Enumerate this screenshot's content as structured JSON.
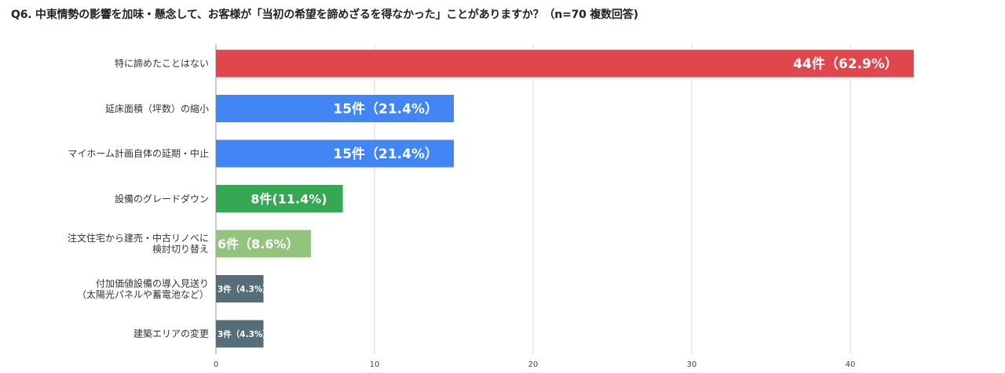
{
  "chart_data": {
    "type": "bar",
    "orientation": "horizontal",
    "title": "Q6. 中東情勢の影響を加味・懸念して、お客様が「当初の希望を諦めざるを得なかった」ことがありますか？（n=70 複数回答)",
    "categories": [
      [
        "特に諦めたことはない"
      ],
      [
        "延床面積（坪数）の縮小"
      ],
      [
        "マイホーム計画自体の延期・中止"
      ],
      [
        "設備のグレードダウン"
      ],
      [
        "注文住宅から建売・中古リノベに",
        "検討切り替え"
      ],
      [
        "付加価値設備の導入見送り",
        "（太陽光パネルや蓄電池など）"
      ],
      [
        "建築エリアの変更"
      ]
    ],
    "values": [
      44,
      15,
      15,
      8,
      6,
      3,
      3
    ],
    "data_labels": [
      "44件（62.9%）",
      "15件（21.4%）",
      "15件（21.4%）",
      "8件(11.4%)",
      "6件（8.6%）",
      "3件（4.3%）",
      "3件（4.3%）"
    ],
    "colors": [
      "#e0474c",
      "#4285f4",
      "#4285f4",
      "#34a853",
      "#93c47d",
      "#566d7a",
      "#566d7a"
    ],
    "xlim": [
      0,
      44
    ],
    "xticks": [
      0,
      10,
      20,
      30,
      40
    ],
    "grid": true
  }
}
